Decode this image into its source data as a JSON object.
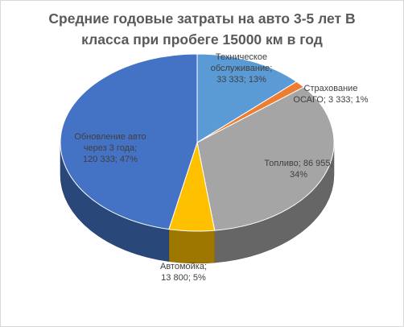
{
  "chart_data": {
    "type": "pie",
    "title_lines": [
      "Средние годовые затраты на авто 3-5 лет В",
      "класса при пробеге 15000 км в год"
    ],
    "slices": [
      {
        "name": "Техническое обслуживание",
        "value": 33333,
        "label_lines": [
          "Техническое",
          "обслуживание;",
          "33 333; 13%"
        ],
        "color": "#5b9bd5"
      },
      {
        "name": "Страхование ОСАГО",
        "value": 3333,
        "label_lines": [
          "Страхование",
          "ОСАГО; 3 333; 1%"
        ],
        "color": "#ed7d31"
      },
      {
        "name": "Топливо",
        "value": 86955,
        "label_lines": [
          "Топливо; 86 955;",
          "34%"
        ],
        "color": "#a5a5a5"
      },
      {
        "name": "Автомойка",
        "value": 13800,
        "label_lines": [
          "Автомойка;",
          "13 800; 5%"
        ],
        "color": "#ffc000"
      },
      {
        "name": "Обновление авто через 3 года",
        "value": 120333,
        "label_lines": [
          "Обновление авто",
          "через 3 года;",
          "120 333; 47%"
        ],
        "color": "#4472c4"
      }
    ]
  }
}
